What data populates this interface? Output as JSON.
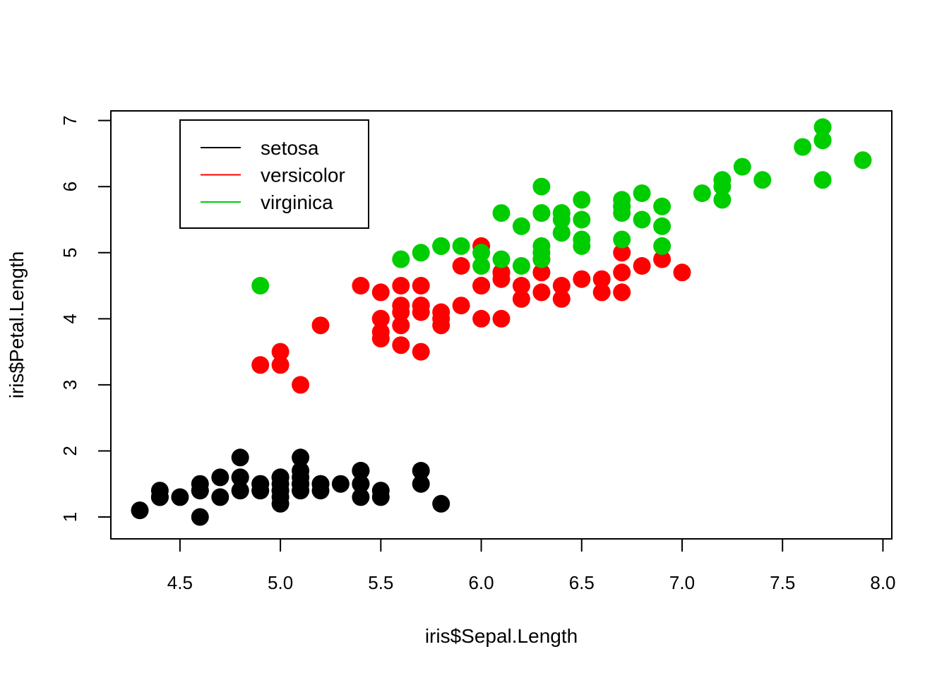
{
  "chart_data": {
    "type": "scatter",
    "xlabel": "iris$Sepal.Length",
    "ylabel": "iris$Petal.Length",
    "xlim": [
      4.3,
      7.9
    ],
    "ylim": [
      1.0,
      6.9
    ],
    "x_ticks": [
      4.5,
      5.0,
      5.5,
      6.0,
      6.5,
      7.0,
      7.5,
      8.0
    ],
    "x_tick_labels": [
      "4.5",
      "5.0",
      "5.5",
      "6.0",
      "6.5",
      "7.0",
      "7.5",
      "8.0"
    ],
    "y_ticks": [
      1,
      2,
      3,
      4,
      5,
      6,
      7
    ],
    "y_tick_labels": [
      "1",
      "2",
      "3",
      "4",
      "5",
      "6",
      "7"
    ],
    "grid": false,
    "legend_position": "top-left",
    "legend": [
      {
        "name": "setosa",
        "color": "#000000"
      },
      {
        "name": "versicolor",
        "color": "#ff0000"
      },
      {
        "name": "virginica",
        "color": "#00cd00"
      }
    ],
    "series": [
      {
        "name": "setosa",
        "color": "#000000",
        "points": [
          [
            5.1,
            1.4
          ],
          [
            4.9,
            1.4
          ],
          [
            4.7,
            1.3
          ],
          [
            4.6,
            1.5
          ],
          [
            5.0,
            1.4
          ],
          [
            5.4,
            1.7
          ],
          [
            4.6,
            1.4
          ],
          [
            5.0,
            1.5
          ],
          [
            4.4,
            1.4
          ],
          [
            4.9,
            1.5
          ],
          [
            5.4,
            1.5
          ],
          [
            4.8,
            1.6
          ],
          [
            4.8,
            1.4
          ],
          [
            4.3,
            1.1
          ],
          [
            5.8,
            1.2
          ],
          [
            5.7,
            1.5
          ],
          [
            5.4,
            1.3
          ],
          [
            5.1,
            1.4
          ],
          [
            5.7,
            1.7
          ],
          [
            5.1,
            1.5
          ],
          [
            5.4,
            1.7
          ],
          [
            5.1,
            1.5
          ],
          [
            4.6,
            1.0
          ],
          [
            5.1,
            1.7
          ],
          [
            4.8,
            1.9
          ],
          [
            5.0,
            1.6
          ],
          [
            5.0,
            1.6
          ],
          [
            5.2,
            1.5
          ],
          [
            5.2,
            1.4
          ],
          [
            4.7,
            1.6
          ],
          [
            4.8,
            1.6
          ],
          [
            5.4,
            1.5
          ],
          [
            5.2,
            1.5
          ],
          [
            5.5,
            1.4
          ],
          [
            4.9,
            1.5
          ],
          [
            5.0,
            1.2
          ],
          [
            5.5,
            1.3
          ],
          [
            4.9,
            1.4
          ],
          [
            4.4,
            1.3
          ],
          [
            5.1,
            1.5
          ],
          [
            5.0,
            1.3
          ],
          [
            4.5,
            1.3
          ],
          [
            4.4,
            1.3
          ],
          [
            5.0,
            1.6
          ],
          [
            5.1,
            1.9
          ],
          [
            4.8,
            1.4
          ],
          [
            5.1,
            1.6
          ],
          [
            4.6,
            1.4
          ],
          [
            5.3,
            1.5
          ],
          [
            5.0,
            1.4
          ]
        ]
      },
      {
        "name": "versicolor",
        "color": "#ff0000",
        "points": [
          [
            7.0,
            4.7
          ],
          [
            6.4,
            4.5
          ],
          [
            6.9,
            4.9
          ],
          [
            5.5,
            4.0
          ],
          [
            6.5,
            4.6
          ],
          [
            5.7,
            4.5
          ],
          [
            6.3,
            4.7
          ],
          [
            4.9,
            3.3
          ],
          [
            6.6,
            4.6
          ],
          [
            5.2,
            3.9
          ],
          [
            5.0,
            3.5
          ],
          [
            5.9,
            4.2
          ],
          [
            6.0,
            4.0
          ],
          [
            6.1,
            4.7
          ],
          [
            5.6,
            3.6
          ],
          [
            6.7,
            4.4
          ],
          [
            5.6,
            4.5
          ],
          [
            5.8,
            4.1
          ],
          [
            6.2,
            4.5
          ],
          [
            5.6,
            3.9
          ],
          [
            5.9,
            4.8
          ],
          [
            6.1,
            4.0
          ],
          [
            6.3,
            4.9
          ],
          [
            6.1,
            4.7
          ],
          [
            6.4,
            4.3
          ],
          [
            6.6,
            4.4
          ],
          [
            6.8,
            4.8
          ],
          [
            6.7,
            5.0
          ],
          [
            6.0,
            4.5
          ],
          [
            5.7,
            3.5
          ],
          [
            5.5,
            3.8
          ],
          [
            5.5,
            3.7
          ],
          [
            5.8,
            3.9
          ],
          [
            6.0,
            5.1
          ],
          [
            5.4,
            4.5
          ],
          [
            6.0,
            4.5
          ],
          [
            6.7,
            4.7
          ],
          [
            6.3,
            4.4
          ],
          [
            5.6,
            4.1
          ],
          [
            5.5,
            4.0
          ],
          [
            5.5,
            4.4
          ],
          [
            6.1,
            4.6
          ],
          [
            5.8,
            4.0
          ],
          [
            5.0,
            3.3
          ],
          [
            5.6,
            4.2
          ],
          [
            5.7,
            4.2
          ],
          [
            5.7,
            4.2
          ],
          [
            6.2,
            4.3
          ],
          [
            5.1,
            3.0
          ],
          [
            5.7,
            4.1
          ]
        ]
      },
      {
        "name": "virginica",
        "color": "#00cd00",
        "points": [
          [
            6.3,
            6.0
          ],
          [
            5.8,
            5.1
          ],
          [
            7.1,
            5.9
          ],
          [
            6.3,
            5.6
          ],
          [
            6.5,
            5.8
          ],
          [
            7.6,
            6.6
          ],
          [
            4.9,
            4.5
          ],
          [
            7.3,
            6.3
          ],
          [
            6.7,
            5.8
          ],
          [
            7.2,
            6.1
          ],
          [
            6.5,
            5.1
          ],
          [
            6.4,
            5.3
          ],
          [
            6.8,
            5.5
          ],
          [
            5.7,
            5.0
          ],
          [
            5.8,
            5.1
          ],
          [
            6.4,
            5.3
          ],
          [
            6.5,
            5.5
          ],
          [
            7.7,
            6.7
          ],
          [
            7.7,
            6.9
          ],
          [
            6.0,
            5.0
          ],
          [
            6.9,
            5.7
          ],
          [
            5.6,
            4.9
          ],
          [
            7.7,
            6.7
          ],
          [
            6.3,
            4.9
          ],
          [
            6.7,
            5.7
          ],
          [
            7.2,
            6.0
          ],
          [
            6.2,
            4.8
          ],
          [
            6.1,
            4.9
          ],
          [
            6.4,
            5.6
          ],
          [
            7.2,
            5.8
          ],
          [
            7.4,
            6.1
          ],
          [
            7.9,
            6.4
          ],
          [
            6.4,
            5.6
          ],
          [
            6.3,
            5.1
          ],
          [
            6.1,
            5.6
          ],
          [
            7.7,
            6.1
          ],
          [
            6.3,
            5.6
          ],
          [
            6.4,
            5.5
          ],
          [
            6.0,
            4.8
          ],
          [
            6.9,
            5.4
          ],
          [
            6.7,
            5.6
          ],
          [
            6.9,
            5.1
          ],
          [
            5.8,
            5.1
          ],
          [
            6.8,
            5.9
          ],
          [
            6.7,
            5.7
          ],
          [
            6.7,
            5.2
          ],
          [
            6.3,
            5.0
          ],
          [
            6.5,
            5.2
          ],
          [
            6.2,
            5.4
          ],
          [
            5.9,
            5.1
          ]
        ]
      }
    ]
  }
}
